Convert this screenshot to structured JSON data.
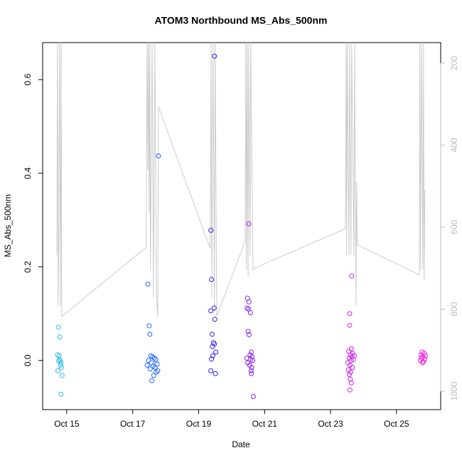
{
  "chart_data": {
    "type": "scatter",
    "title": "ATOM3 Northbound MS_Abs_500nm",
    "x_label": "Date",
    "y_label": "MS_Abs_500nm",
    "xlim": [
      14.27,
      26.34
    ],
    "xticks": [
      {
        "value": 15,
        "label": "Oct 15"
      },
      {
        "value": 17,
        "label": "Oct 17"
      },
      {
        "value": 19,
        "label": "Oct 19"
      },
      {
        "value": 21,
        "label": "Oct 21"
      },
      {
        "value": 23,
        "label": "Oct 23"
      },
      {
        "value": 25,
        "label": "Oct 25"
      }
    ],
    "ylim": [
      -0.105,
      0.679
    ],
    "yticks": [
      {
        "value": 0,
        "label": "0.0"
      },
      0.2,
      0.4,
      0.6
    ],
    "y2lim": [
      1045,
      150
    ],
    "y2ticks": [
      200,
      400,
      600,
      800,
      1000
    ],
    "series": [
      {
        "color": "#33bbee",
        "x": [
          14.75,
          14.79,
          14.72,
          14.77,
          14.78,
          14.8,
          14.76,
          14.83,
          14.81,
          14.84,
          14.73,
          14.86,
          14.83
        ],
        "values": [
          0.071,
          0.05,
          0.012,
          0.01,
          0.002,
          0.0,
          -0.002,
          -0.005,
          -0.01,
          -0.015,
          -0.022,
          -0.032,
          -0.072
        ]
      },
      {
        "color": "#2266ff",
        "x": [
          17.78,
          17.46,
          17.5,
          17.52,
          17.55,
          17.6,
          17.66,
          17.7,
          17.48,
          17.57,
          17.74,
          17.44,
          17.62,
          17.68,
          17.53,
          17.76,
          17.71,
          17.64,
          17.58
        ],
        "values": [
          0.437,
          0.163,
          0.074,
          0.056,
          0.01,
          0.008,
          0.005,
          0.002,
          0.0,
          -0.005,
          -0.008,
          -0.01,
          -0.012,
          -0.015,
          -0.018,
          -0.022,
          -0.025,
          -0.032,
          -0.043
        ]
      },
      {
        "color": "#3322ee",
        "x": [
          19.48,
          19.37,
          19.39,
          19.47,
          19.37,
          19.49,
          19.41,
          19.45,
          19.48,
          19.42,
          19.52,
          19.43,
          19.39,
          19.37,
          19.51
        ],
        "values": [
          0.65,
          0.278,
          0.173,
          0.112,
          0.106,
          0.088,
          0.056,
          0.038,
          0.035,
          0.03,
          0.018,
          0.01,
          0.003,
          -0.022,
          -0.028
        ]
      },
      {
        "color": "#8822ee",
        "x": [
          20.52,
          20.48,
          20.53,
          20.47,
          20.51,
          20.57,
          20.5,
          20.53,
          20.6,
          20.56,
          20.62,
          20.46,
          20.58,
          20.64,
          20.49,
          20.55,
          20.61,
          20.59,
          20.6,
          20.66
        ],
        "values": [
          0.292,
          0.133,
          0.125,
          0.112,
          0.11,
          0.102,
          0.062,
          0.055,
          0.018,
          0.012,
          0.008,
          0.005,
          0.002,
          0.0,
          -0.005,
          -0.01,
          -0.015,
          -0.022,
          -0.028,
          -0.077
        ]
      },
      {
        "color": "#cc22ee",
        "x": [
          23.64,
          23.58,
          23.58,
          23.63,
          23.55,
          23.67,
          23.6,
          23.72,
          23.65,
          23.57,
          23.69,
          23.62,
          23.52,
          23.59,
          23.66,
          23.54,
          23.61,
          23.57,
          23.6,
          23.63,
          23.59
        ],
        "values": [
          0.18,
          0.1,
          0.075,
          0.025,
          0.02,
          0.015,
          0.012,
          0.01,
          0.008,
          0.005,
          0.002,
          0.0,
          -0.005,
          -0.01,
          -0.015,
          -0.02,
          -0.025,
          -0.03,
          -0.04,
          -0.048,
          -0.063
        ]
      },
      {
        "color": "#ee22dd",
        "x": [
          25.78,
          25.84,
          25.74,
          25.88,
          25.8,
          25.76,
          25.86,
          25.72,
          25.82,
          25.79
        ],
        "values": [
          0.018,
          0.015,
          0.012,
          0.01,
          0.008,
          0.005,
          0.003,
          0.0,
          -0.003,
          -0.005
        ]
      },
      {
        "type": "line",
        "axis": "y2",
        "color": "#cccccc",
        "x": [
          14.7,
          14.72,
          14.74,
          14.76,
          14.78,
          14.81,
          14.83,
          14.85,
          17.41,
          17.44,
          17.46,
          17.48,
          17.5,
          17.52,
          17.54,
          17.59,
          17.63,
          17.67,
          17.72,
          17.76,
          17.78,
          19.35,
          19.38,
          19.4,
          19.44,
          19.48,
          19.5,
          19.55,
          20.41,
          20.43,
          20.45,
          20.47,
          20.5,
          20.52,
          20.56,
          20.58,
          20.65,
          20.69,
          23.45,
          23.47,
          23.49,
          23.51,
          23.56,
          23.58,
          23.62,
          23.64,
          23.71,
          23.73,
          23.77,
          23.79,
          23.81,
          25.69,
          25.71,
          25.73,
          25.76,
          25.8,
          25.82,
          25.84,
          25.86
        ],
        "values": [
          669,
          150,
          791,
          600,
          150,
          791,
          150,
          818,
          649,
          150,
          461,
          150,
          565,
          150,
          704,
          150,
          773,
          150,
          773,
          820,
          306,
          652,
          150,
          773,
          150,
          808,
          150,
          817,
          635,
          150,
          704,
          150,
          721,
          150,
          669,
          150,
          704,
          700,
          604,
          150,
          669,
          150,
          669,
          150,
          669,
          150,
          669,
          150,
          791,
          489,
          643,
          716,
          150,
          704,
          150,
          704,
          150,
          728,
          510
        ]
      }
    ]
  }
}
